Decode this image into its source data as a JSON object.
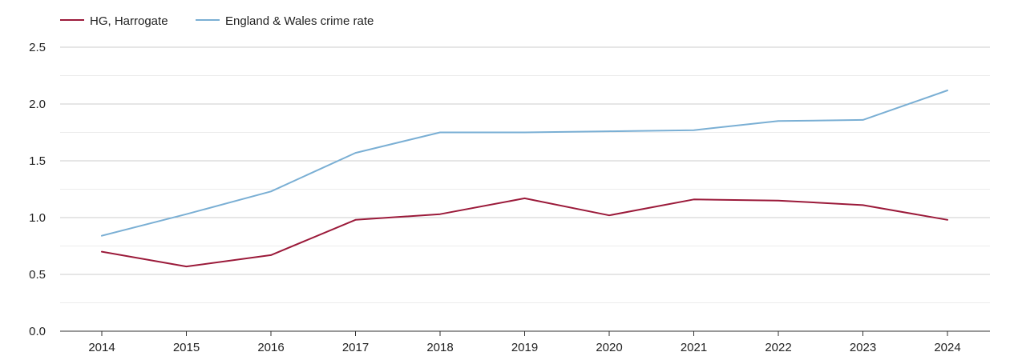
{
  "chart_data": {
    "type": "line",
    "title": "",
    "xlabel": "",
    "ylabel": "",
    "ylim": [
      0,
      2.5
    ],
    "grid": true,
    "legend_position": "top-left",
    "categories": [
      "2014",
      "2015",
      "2016",
      "2017",
      "2018",
      "2019",
      "2020",
      "2021",
      "2022",
      "2023",
      "2024"
    ],
    "y_ticks": [
      "0.0",
      "0.5",
      "1.0",
      "1.5",
      "2.0",
      "2.5"
    ],
    "series": [
      {
        "name": "HG, Harrogate",
        "color": "#9b1a3a",
        "values": [
          0.7,
          0.57,
          0.67,
          0.98,
          1.03,
          1.17,
          1.02,
          1.16,
          1.15,
          1.11,
          0.98
        ]
      },
      {
        "name": "England & Wales crime rate",
        "color": "#7aafd4",
        "values": [
          0.84,
          1.03,
          1.23,
          1.57,
          1.75,
          1.75,
          1.76,
          1.77,
          1.85,
          1.86,
          2.12
        ]
      }
    ]
  }
}
